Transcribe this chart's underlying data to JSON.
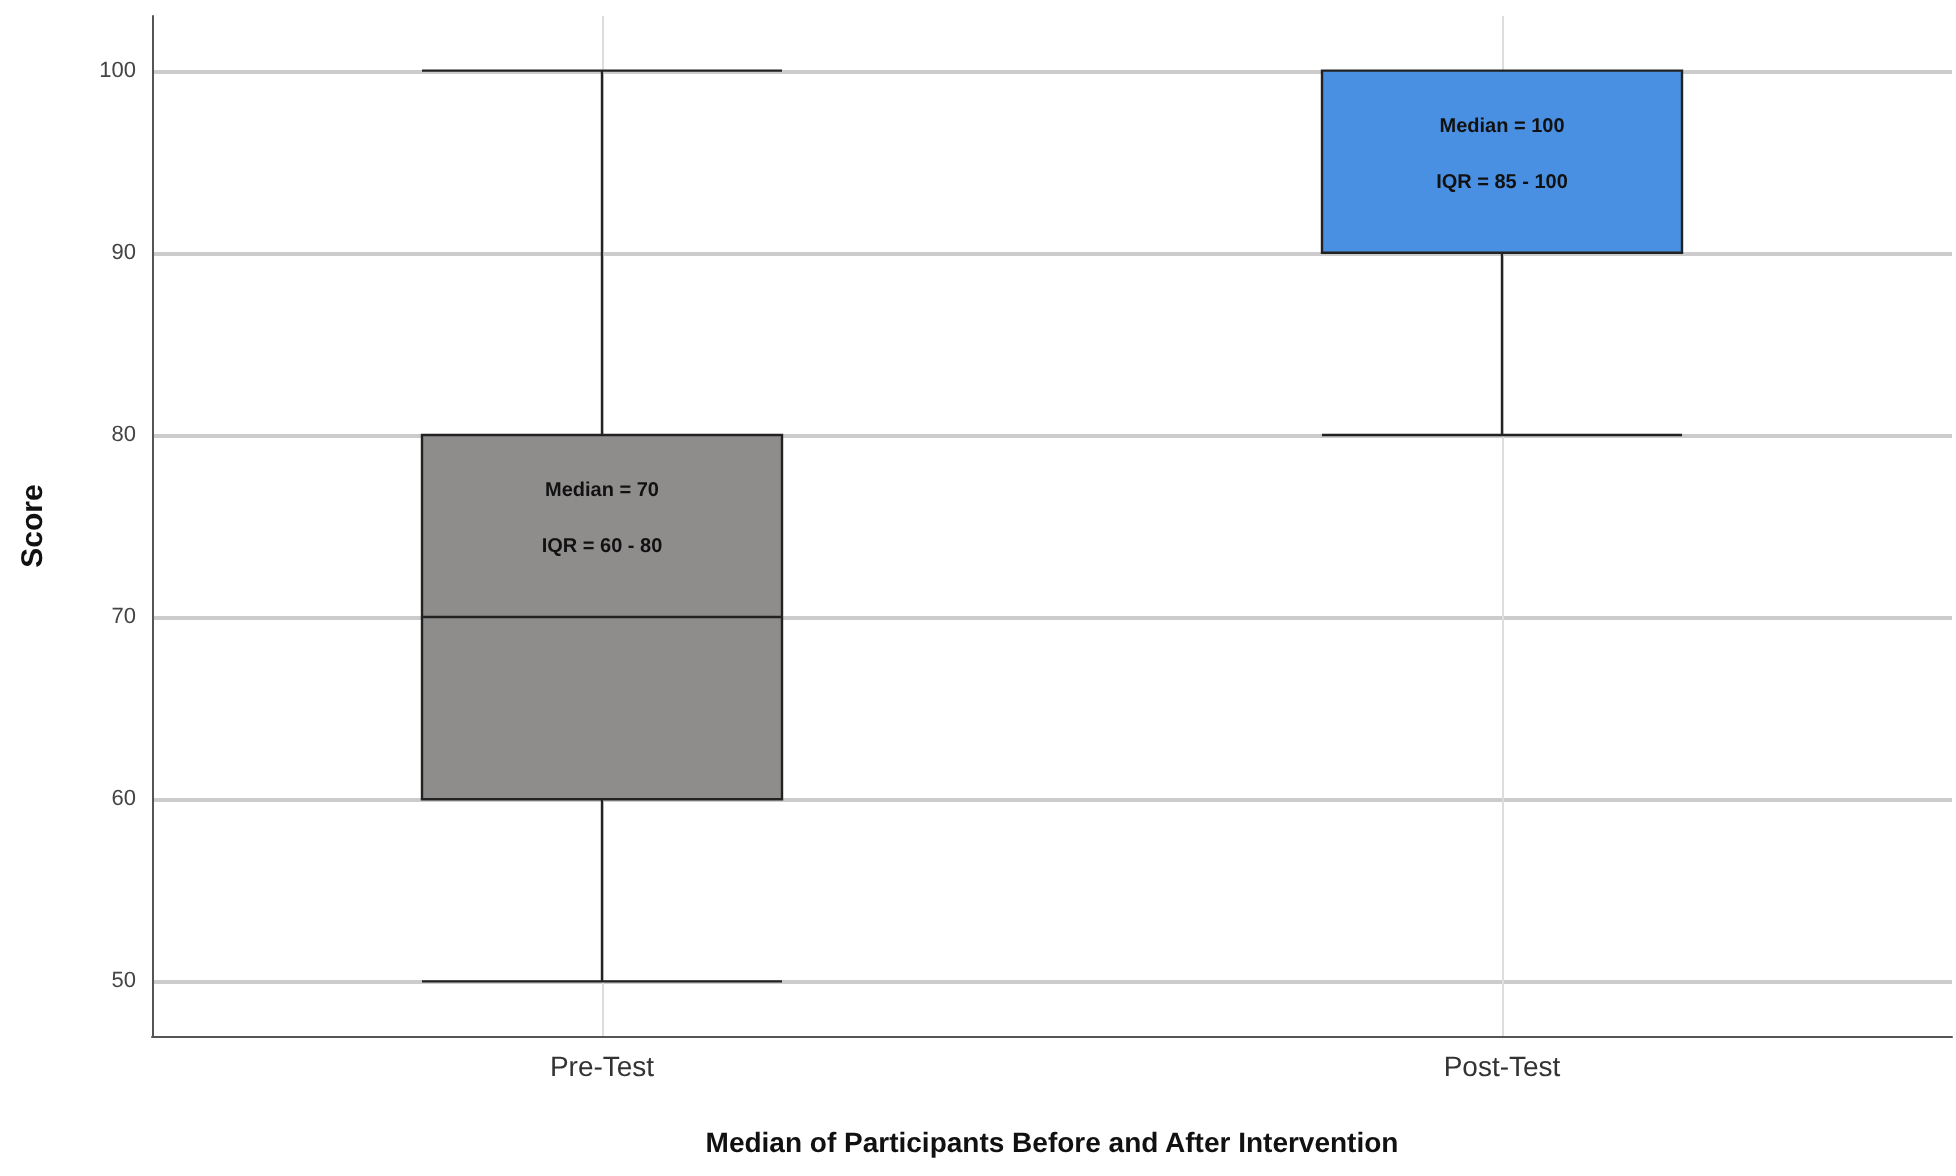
{
  "chart_data": {
    "type": "box",
    "xlabel": "Median of Participants Before and After Intervention",
    "ylabel": "Score",
    "categories": [
      "Pre-Test",
      "Post-Test"
    ],
    "boxes": [
      {
        "low": 50,
        "q1": 60,
        "median": 70,
        "q3": 80,
        "high": 100
      },
      {
        "low": 80,
        "q1": 90,
        "median": 100,
        "q3": 100,
        "high": 100
      }
    ],
    "colors": [
      "#8f8c8c",
      "#4a90e2"
    ],
    "ylim": [
      47,
      103
    ],
    "yticks": [
      50,
      60,
      70,
      80,
      90,
      100
    ],
    "grid": true,
    "annotations": [
      "Median = 70",
      "IQR = 60 - 80",
      "Median = 100",
      "IQR = 85 - 100"
    ]
  }
}
